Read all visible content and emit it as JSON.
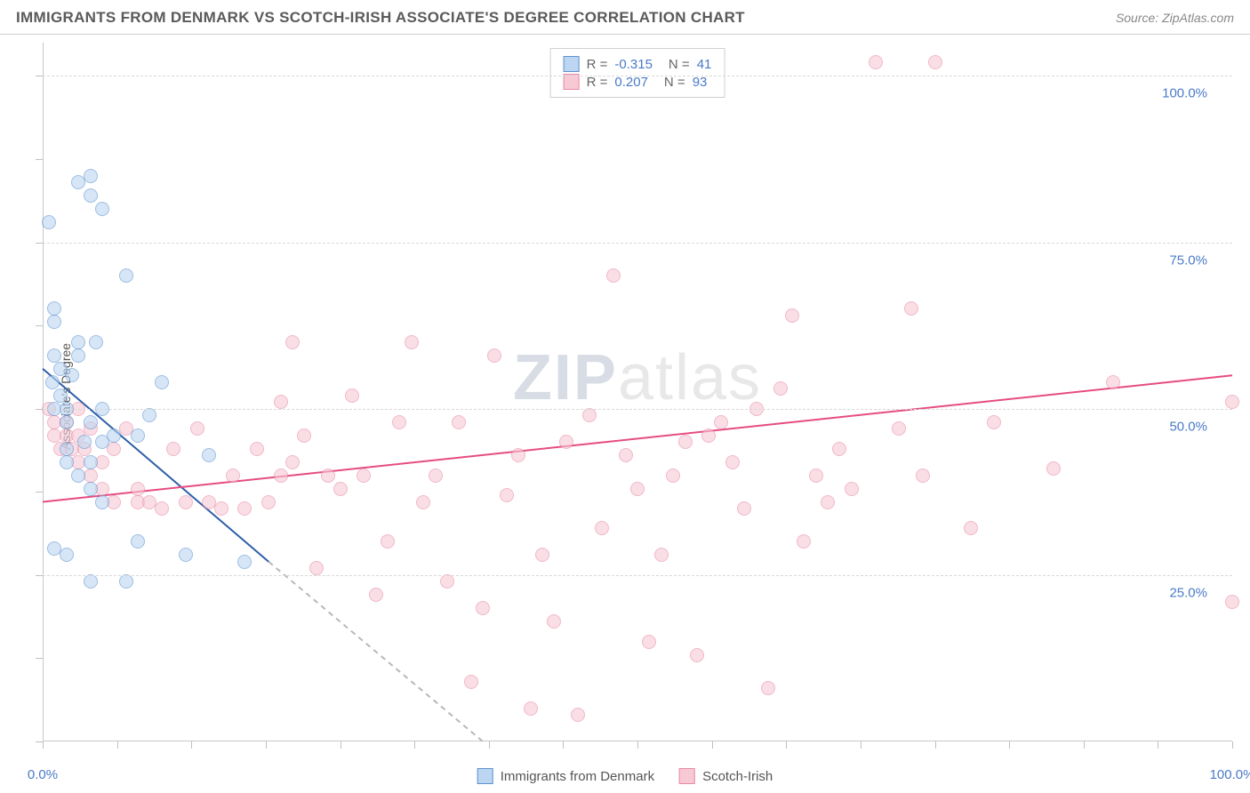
{
  "title": "IMMIGRANTS FROM DENMARK VS SCOTCH-IRISH ASSOCIATE'S DEGREE CORRELATION CHART",
  "source": "Source: ZipAtlas.com",
  "ylabel": "Associate's Degree",
  "watermark_bold": "ZIP",
  "watermark_light": "atlas",
  "chart": {
    "type": "scatter",
    "background_color": "#ffffff",
    "grid_color": "#d8d8d8",
    "axis_color": "#c8c8c8",
    "xlim": [
      0,
      100
    ],
    "ylim": [
      0,
      105
    ],
    "xtick_labels": [
      "0.0%",
      "100.0%"
    ],
    "xtick_positions": [
      0,
      100
    ],
    "ytick_labels": [
      "25.0%",
      "50.0%",
      "75.0%",
      "100.0%"
    ],
    "ytick_positions": [
      25,
      50,
      75,
      100
    ],
    "gridline_y": [
      25,
      50,
      75,
      100
    ],
    "tickmark_x": [
      0,
      6.25,
      12.5,
      18.75,
      25,
      31.25,
      37.5,
      43.75,
      50,
      56.25,
      62.5,
      68.75,
      75,
      81.25,
      87.5,
      93.75,
      100
    ],
    "tickmark_y": [
      0,
      12.5,
      25,
      37.5,
      50,
      62.5,
      75,
      87.5,
      100
    ],
    "point_radius": 8,
    "point_border_width": 1.2,
    "series": [
      {
        "name": "Immigrants from Denmark",
        "fill": "#bcd6f2",
        "stroke": "#5e92cf",
        "fill_opacity": 0.6,
        "R": "-0.315",
        "N": "41",
        "regression": {
          "solid_from": [
            0,
            56
          ],
          "solid_to": [
            19,
            27
          ],
          "dashed_from": [
            19,
            27
          ],
          "dashed_to": [
            37,
            0
          ],
          "solid_color": "#2d5fa8",
          "dashed_color": "#b8b8b8",
          "width": 2
        },
        "points": [
          [
            0.5,
            78
          ],
          [
            1,
            65
          ],
          [
            1,
            63
          ],
          [
            1,
            58
          ],
          [
            1.5,
            56
          ],
          [
            0.8,
            54
          ],
          [
            1.5,
            52
          ],
          [
            1,
            50
          ],
          [
            2,
            50
          ],
          [
            2,
            48
          ],
          [
            2.5,
            55
          ],
          [
            3,
            58
          ],
          [
            3,
            60
          ],
          [
            3,
            84
          ],
          [
            4,
            82
          ],
          [
            4,
            85
          ],
          [
            5,
            80
          ],
          [
            3.5,
            45
          ],
          [
            4,
            48
          ],
          [
            4,
            42
          ],
          [
            5,
            45
          ],
          [
            5,
            50
          ],
          [
            2,
            44
          ],
          [
            2,
            42
          ],
          [
            3,
            40
          ],
          [
            4,
            38
          ],
          [
            5,
            36
          ],
          [
            6,
            46
          ],
          [
            7,
            70
          ],
          [
            1,
            29
          ],
          [
            2,
            28
          ],
          [
            4,
            24
          ],
          [
            7,
            24
          ],
          [
            8,
            46
          ],
          [
            8,
            30
          ],
          [
            9,
            49
          ],
          [
            10,
            54
          ],
          [
            12,
            28
          ],
          [
            14,
            43
          ],
          [
            17,
            27
          ],
          [
            4.5,
            60
          ]
        ]
      },
      {
        "name": "Scotch-Irish",
        "fill": "#f6c9d4",
        "stroke": "#e98aa4",
        "fill_opacity": 0.6,
        "R": "0.207",
        "N": "93",
        "regression": {
          "solid_from": [
            0,
            36
          ],
          "solid_to": [
            100,
            55
          ],
          "solid_color": "#e64c82",
          "width": 2
        },
        "points": [
          [
            0.5,
            50
          ],
          [
            1,
            48
          ],
          [
            1,
            46
          ],
          [
            1.5,
            44
          ],
          [
            2,
            48
          ],
          [
            2,
            46
          ],
          [
            2.5,
            44
          ],
          [
            3,
            50
          ],
          [
            3,
            46
          ],
          [
            3,
            42
          ],
          [
            3.5,
            44
          ],
          [
            4,
            47
          ],
          [
            4,
            40
          ],
          [
            5,
            38
          ],
          [
            5,
            42
          ],
          [
            6,
            36
          ],
          [
            6,
            44
          ],
          [
            7,
            47
          ],
          [
            8,
            36
          ],
          [
            8,
            38
          ],
          [
            9,
            36
          ],
          [
            10,
            35
          ],
          [
            11,
            44
          ],
          [
            12,
            36
          ],
          [
            13,
            47
          ],
          [
            14,
            36
          ],
          [
            15,
            35
          ],
          [
            16,
            40
          ],
          [
            17,
            35
          ],
          [
            18,
            44
          ],
          [
            19,
            36
          ],
          [
            20,
            51
          ],
          [
            20,
            40
          ],
          [
            21,
            60
          ],
          [
            21,
            42
          ],
          [
            22,
            46
          ],
          [
            23,
            26
          ],
          [
            24,
            40
          ],
          [
            25,
            38
          ],
          [
            26,
            52
          ],
          [
            27,
            40
          ],
          [
            28,
            22
          ],
          [
            29,
            30
          ],
          [
            30,
            48
          ],
          [
            31,
            60
          ],
          [
            32,
            36
          ],
          [
            33,
            40
          ],
          [
            34,
            24
          ],
          [
            35,
            48
          ],
          [
            36,
            9
          ],
          [
            37,
            20
          ],
          [
            38,
            58
          ],
          [
            39,
            37
          ],
          [
            40,
            43
          ],
          [
            41,
            5
          ],
          [
            42,
            28
          ],
          [
            43,
            18
          ],
          [
            44,
            45
          ],
          [
            45,
            4
          ],
          [
            46,
            49
          ],
          [
            47,
            32
          ],
          [
            48,
            70
          ],
          [
            49,
            43
          ],
          [
            50,
            38
          ],
          [
            51,
            15
          ],
          [
            52,
            28
          ],
          [
            53,
            40
          ],
          [
            54,
            45
          ],
          [
            55,
            13
          ],
          [
            56,
            46
          ],
          [
            57,
            48
          ],
          [
            58,
            42
          ],
          [
            59,
            35
          ],
          [
            60,
            50
          ],
          [
            61,
            8
          ],
          [
            62,
            53
          ],
          [
            63,
            64
          ],
          [
            64,
            30
          ],
          [
            65,
            40
          ],
          [
            66,
            36
          ],
          [
            67,
            44
          ],
          [
            68,
            38
          ],
          [
            70,
            102
          ],
          [
            72,
            47
          ],
          [
            73,
            65
          ],
          [
            74,
            40
          ],
          [
            75,
            102
          ],
          [
            78,
            32
          ],
          [
            80,
            48
          ],
          [
            85,
            41
          ],
          [
            90,
            54
          ],
          [
            100,
            21
          ],
          [
            100,
            51
          ]
        ]
      }
    ]
  },
  "legend_bottom": [
    {
      "label": "Immigrants from Denmark",
      "fill": "#bcd6f2",
      "stroke": "#5e92cf"
    },
    {
      "label": "Scotch-Irish",
      "fill": "#f6c9d4",
      "stroke": "#e98aa4"
    }
  ]
}
